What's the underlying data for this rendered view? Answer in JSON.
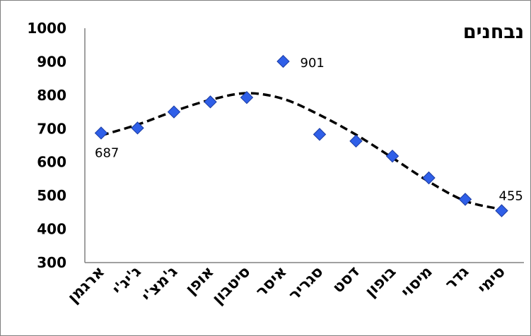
{
  "chart_data": {
    "type": "scatter",
    "title": "נבחנים",
    "categories": [
      "ארגמן",
      "ג'יג'י",
      "ג'מצ'י",
      "אופן",
      "סיטבון",
      "איסר",
      "סגריר",
      "דסט",
      "בופון",
      "מיסוי",
      "גדר",
      "סימי"
    ],
    "series": [
      {
        "values": [
          687,
          702,
          750,
          780,
          793,
          901,
          683,
          663,
          618,
          553,
          489,
          455
        ],
        "marker": "diamond",
        "color": "#2f5fe8"
      }
    ],
    "data_labels": [
      {
        "category": "ארגמן",
        "value": 687,
        "text": "687"
      },
      {
        "category": "איסר",
        "value": 901,
        "text": "901"
      },
      {
        "category": "סימי",
        "value": 455,
        "text": "455"
      }
    ],
    "trendline": {
      "style": "dashed",
      "color": "#000000",
      "values": [
        680,
        712,
        752,
        786,
        806,
        789,
        741,
        682,
        613,
        542,
        484,
        459
      ]
    },
    "ylim": [
      300,
      1000
    ],
    "yticks": [
      300,
      400,
      500,
      600,
      700,
      800,
      900,
      1000
    ],
    "xlabel": "",
    "ylabel": "",
    "grid": false,
    "legend": "none"
  }
}
